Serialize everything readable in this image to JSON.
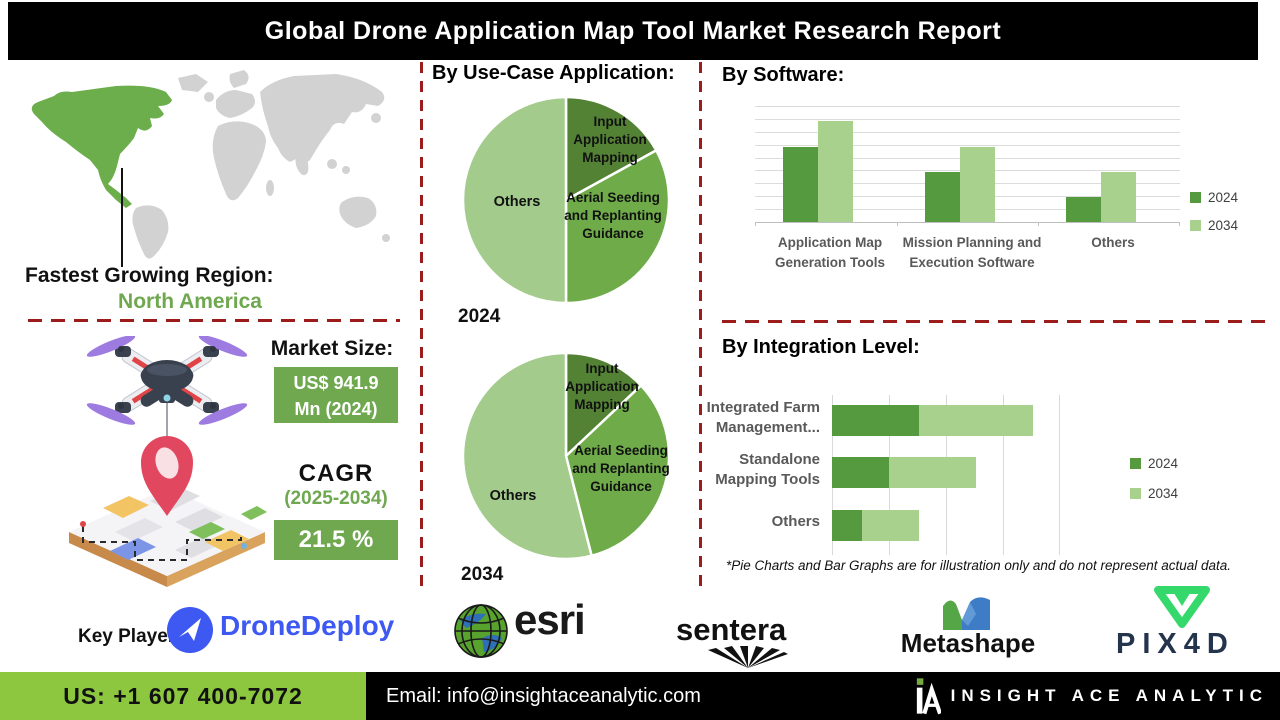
{
  "title": "Global Drone Application Map Tool Market Research Report",
  "left_panel": {
    "fastest_region_label": "Fastest Growing Region:",
    "fastest_region_value": "North America",
    "market_size_label": "Market Size:",
    "market_size_line1": "US$ 941.9",
    "market_size_line2": "Mn (2024)",
    "cagr_label": "CAGR",
    "cagr_period": "(2025-2034)",
    "cagr_value": "21.5 %"
  },
  "sections": {
    "use_case_title": "By Use-Case Application:",
    "software_title": "By Software:",
    "integration_title": "By Integration Level:",
    "disclaimer": "*Pie Charts and Bar Graphs are for illustration only and do not represent actual data."
  },
  "chart_data": [
    {
      "type": "pie",
      "title": "By Use-Case Application:",
      "year_label": "2024",
      "slices": [
        {
          "label": "Input Application Mapping",
          "value": 17,
          "color": "#548235"
        },
        {
          "label": "Aerial Seeding and Replanting Guidance",
          "value": 33,
          "color": "#6FAC49"
        },
        {
          "label": "Others",
          "value": 50,
          "color": "#A3CB8C"
        }
      ],
      "note": "illustrative percentages estimated from slice angles"
    },
    {
      "type": "pie",
      "title": "By Use-Case Application:",
      "year_label": "2034",
      "slices": [
        {
          "label": "Input Application Mapping",
          "value": 13,
          "color": "#548235"
        },
        {
          "label": "Aerial Seeding and Replanting Guidance",
          "value": 33,
          "color": "#6FAC49"
        },
        {
          "label": "Others",
          "value": 54,
          "color": "#A3CB8C"
        }
      ],
      "note": "illustrative percentages estimated from slice angles"
    },
    {
      "type": "bar",
      "title": "By Software:",
      "categories": [
        "Application Map Generation Tools",
        "Mission Planning and Execution Software",
        "Others"
      ],
      "series": [
        {
          "name": "2024",
          "color": "#569A40",
          "values": [
            65,
            43,
            22
          ]
        },
        {
          "name": "2034",
          "color": "#A9D18E",
          "values": [
            87,
            65,
            43
          ]
        }
      ],
      "ylim": [
        0,
        100
      ],
      "grid": true,
      "legend_position": "right",
      "note": "illustrative values estimated from bar heights"
    },
    {
      "type": "bar-horizontal-stacked",
      "title": "By Integration Level:",
      "categories": [
        "Integrated Farm Management...",
        "Standalone Mapping Tools",
        "Others"
      ],
      "series": [
        {
          "name": "2024",
          "color": "#569A40",
          "values": [
            38,
            25,
            13
          ]
        },
        {
          "name": "2034",
          "color": "#A9D18E",
          "values": [
            50,
            38,
            25
          ]
        }
      ],
      "xlim": [
        0,
        100
      ],
      "grid": true,
      "legend_position": "right",
      "note": "illustrative values estimated from bar lengths"
    }
  ],
  "key_players": {
    "label": "Key Players:",
    "players": [
      "DroneDeploy",
      "esri",
      "sentera",
      "Metashape",
      "PIX4D"
    ]
  },
  "footer": {
    "phone": "US: +1 607 400-7072",
    "email": "Email: info@insightaceanalytic.com",
    "brand": "INSIGHT ACE ANALYTIC"
  },
  "colors": {
    "title_bar_bg": "#000000",
    "separator_red": "#9C1C1C",
    "green_accent": "#6FA84F",
    "map_gray": "#D2D2D2",
    "map_highlight": "#6CAE4C",
    "pie_dark": "#548235",
    "pie_medium": "#6FAC49",
    "pie_light": "#A3CB8C",
    "bar_2024": "#569A40",
    "bar_2034": "#A9D18E",
    "footer_green": "#8DC63F",
    "dronedeploy_blue": "#3D59F2",
    "pix4d_green": "#35D96B",
    "pix4d_navy": "#24344D",
    "category_text": "#595959"
  }
}
